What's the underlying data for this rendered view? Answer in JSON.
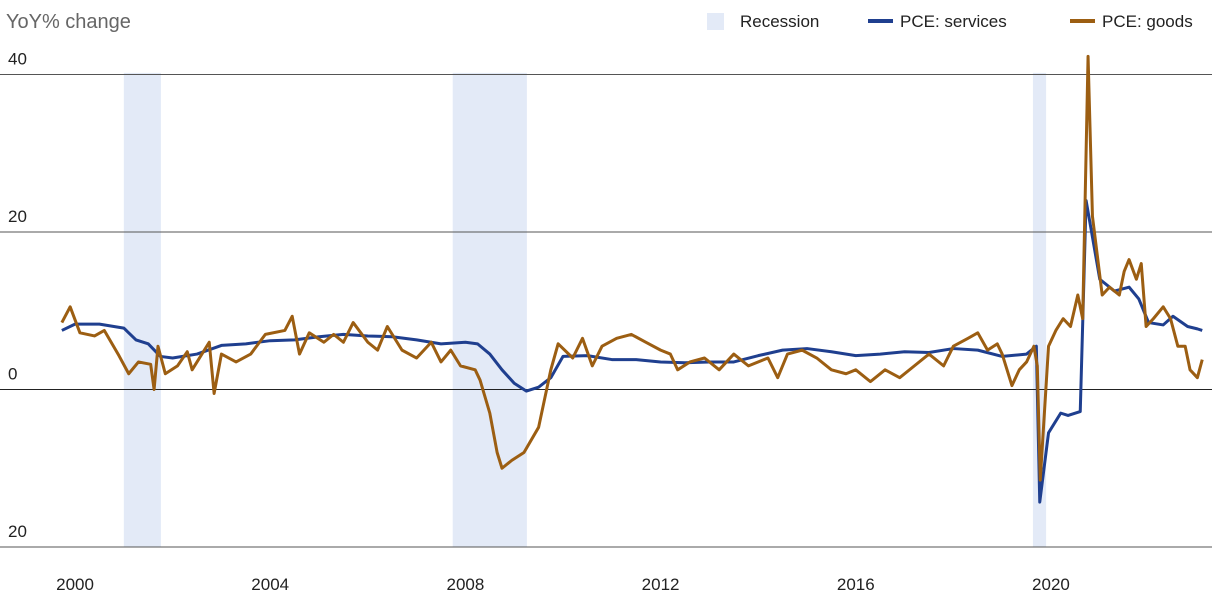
{
  "chart_data": {
    "type": "line",
    "ylabel": "YoY% change",
    "xlim": [
      1999.7,
      2023.3
    ],
    "ylim": [
      -20,
      43
    ],
    "xticks": [
      2000,
      2004,
      2008,
      2012,
      2016,
      2020
    ],
    "yticks": [
      {
        "value": -20,
        "label": "20"
      },
      0,
      20,
      40
    ],
    "grid": true,
    "legend": "top-right",
    "recession_name": "Recession",
    "recession_color": "#e3eaf7",
    "recessions": [
      [
        2001.0,
        2001.76
      ],
      [
        2007.74,
        2009.26
      ],
      [
        2019.63,
        2019.9
      ]
    ],
    "series": [
      {
        "name": "PCE: services",
        "color": "#1f3f8f",
        "x": [
          1999.73,
          2000,
          2000.5,
          2001,
          2001.25,
          2001.5,
          2001.75,
          2002,
          2002.5,
          2003,
          2003.5,
          2004,
          2004.5,
          2005,
          2005.5,
          2006,
          2006.5,
          2007,
          2007.5,
          2008,
          2008.25,
          2008.5,
          2008.75,
          2009,
          2009.25,
          2009.5,
          2009.75,
          2010,
          2010.5,
          2011,
          2011.5,
          2012,
          2012.5,
          2013,
          2013.5,
          2014,
          2014.5,
          2015,
          2015.5,
          2016,
          2016.5,
          2017,
          2017.5,
          2018,
          2018.5,
          2019,
          2019.5,
          2019.7,
          2019.77,
          2019.95,
          2020.2,
          2020.35,
          2020.6,
          2020.72,
          2021.0,
          2021.3,
          2021.6,
          2021.8,
          2022.0,
          2022.3,
          2022.5,
          2022.8,
          2023.0,
          2023.1
        ],
        "values": [
          7.5,
          8.3,
          8.3,
          7.8,
          6.3,
          5.8,
          4.2,
          4.0,
          4.5,
          5.6,
          5.8,
          6.2,
          6.3,
          6.7,
          7.0,
          6.8,
          6.7,
          6.3,
          5.8,
          6.0,
          5.8,
          4.5,
          2.5,
          0.8,
          -0.2,
          0.3,
          1.5,
          4.2,
          4.3,
          3.8,
          3.8,
          3.5,
          3.4,
          3.5,
          3.5,
          4.3,
          5.0,
          5.2,
          4.8,
          4.3,
          4.5,
          4.8,
          4.7,
          5.2,
          5.0,
          4.2,
          4.5,
          5.5,
          -14.3,
          -5.5,
          -3.0,
          -3.3,
          -2.8,
          24.0,
          14.0,
          12.5,
          13.0,
          11.5,
          8.5,
          8.2,
          9.3,
          8.0,
          7.7,
          7.5
        ]
      },
      {
        "name": "PCE: goods",
        "color": "#9c5e12",
        "x": [
          1999.73,
          1999.9,
          2000.1,
          2000.4,
          2000.6,
          2000.9,
          2001.1,
          2001.3,
          2001.55,
          2001.62,
          2001.7,
          2001.85,
          2002.1,
          2002.3,
          2002.4,
          2002.6,
          2002.75,
          2002.85,
          2003.0,
          2003.3,
          2003.6,
          2003.9,
          2004.3,
          2004.45,
          2004.6,
          2004.8,
          2005.1,
          2005.3,
          2005.5,
          2005.7,
          2006.0,
          2006.2,
          2006.4,
          2006.7,
          2007.0,
          2007.3,
          2007.5,
          2007.7,
          2007.9,
          2008.2,
          2008.3,
          2008.5,
          2008.65,
          2008.75,
          2008.95,
          2009.2,
          2009.5,
          2009.75,
          2009.9,
          2010.2,
          2010.4,
          2010.6,
          2010.8,
          2011.1,
          2011.4,
          2011.7,
          2012.0,
          2012.2,
          2012.35,
          2012.6,
          2012.9,
          2013.2,
          2013.5,
          2013.8,
          2014.2,
          2014.4,
          2014.6,
          2014.9,
          2015.2,
          2015.5,
          2015.8,
          2016.0,
          2016.3,
          2016.6,
          2016.9,
          2017.2,
          2017.5,
          2017.8,
          2018.0,
          2018.3,
          2018.5,
          2018.7,
          2018.9,
          2019.0,
          2019.2,
          2019.35,
          2019.5,
          2019.65,
          2019.72,
          2019.78,
          2019.95,
          2020.1,
          2020.25,
          2020.4,
          2020.55,
          2020.65,
          2020.76,
          2020.85,
          2021.05,
          2021.2,
          2021.4,
          2021.5,
          2021.6,
          2021.75,
          2021.85,
          2021.95,
          2022.1,
          2022.3,
          2022.45,
          2022.6,
          2022.75,
          2022.85,
          2023.0,
          2023.1
        ],
        "values": [
          8.5,
          10.5,
          7.2,
          6.8,
          7.5,
          4.3,
          2.0,
          3.5,
          3.2,
          0,
          5.5,
          2.0,
          3.0,
          4.8,
          2.5,
          4.5,
          6.0,
          -0.5,
          4.5,
          3.5,
          4.5,
          7.0,
          7.5,
          9.3,
          4.5,
          7.2,
          6.0,
          7.0,
          6.0,
          8.5,
          6.0,
          5.0,
          8.0,
          5.0,
          4.0,
          6.0,
          3.5,
          5.0,
          3.0,
          2.5,
          1.2,
          -3.0,
          -8.0,
          -10.0,
          -9.0,
          -8.0,
          -4.8,
          2.5,
          5.8,
          4.0,
          6.5,
          3.0,
          5.5,
          6.5,
          7.0,
          6.0,
          5.0,
          4.5,
          2.5,
          3.5,
          4.0,
          2.5,
          4.5,
          3.0,
          4.0,
          1.5,
          4.5,
          5.0,
          4.0,
          2.5,
          2.0,
          2.5,
          1.0,
          2.5,
          1.5,
          3.0,
          4.5,
          3.0,
          5.5,
          6.5,
          7.2,
          5.0,
          5.8,
          4.5,
          0.5,
          2.5,
          3.5,
          5.5,
          3.0,
          -11.5,
          5.5,
          7.5,
          9.0,
          8.0,
          12.0,
          9.0,
          42.3,
          22.0,
          12.0,
          13.0,
          12.0,
          15.0,
          16.5,
          14.0,
          16.0,
          8.0,
          9.0,
          10.5,
          9.0,
          5.5,
          5.5,
          2.5,
          1.5,
          3.8
        ]
      }
    ]
  }
}
